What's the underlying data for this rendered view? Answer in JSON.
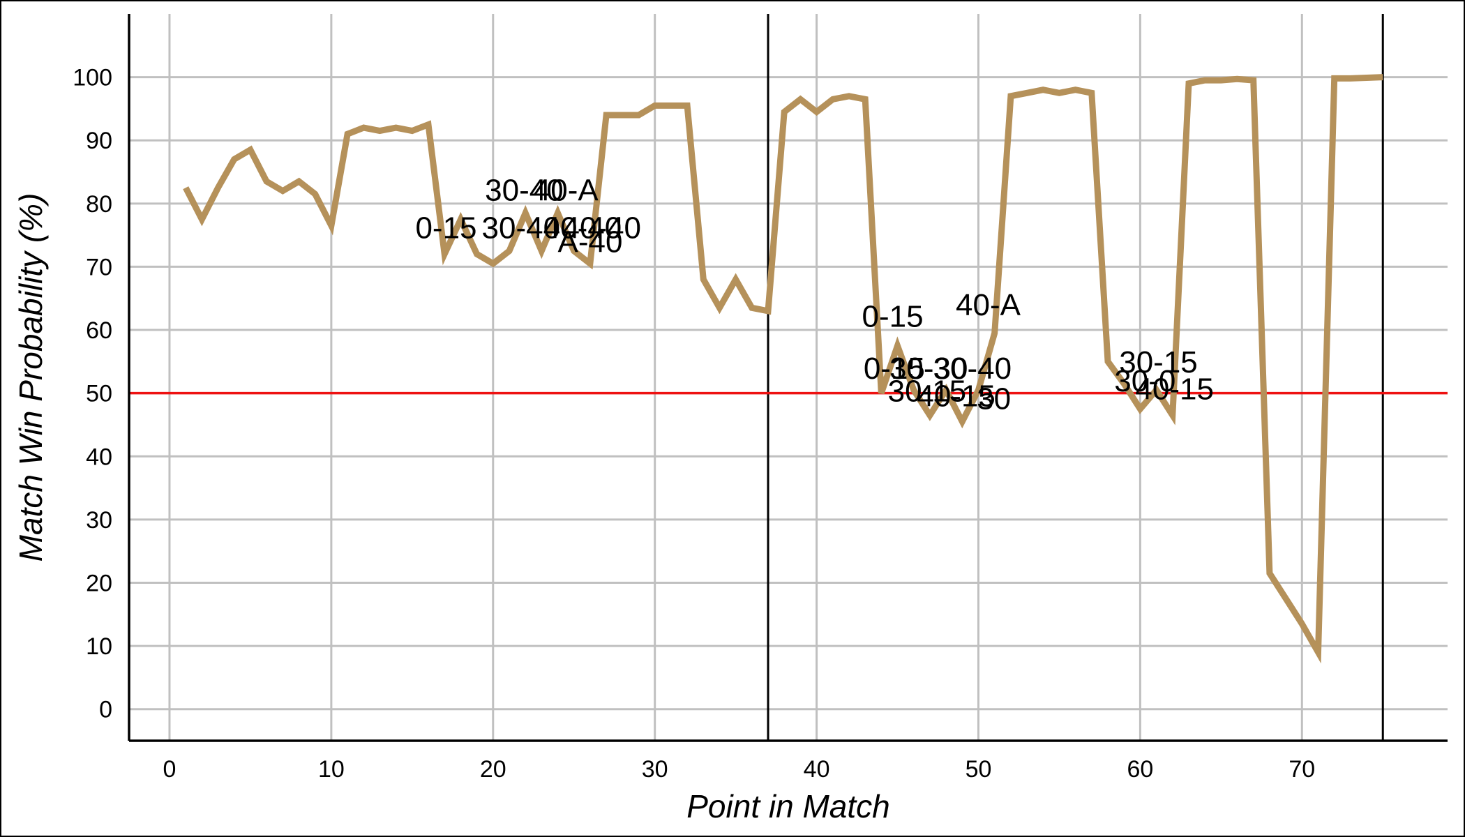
{
  "chart_data": {
    "type": "line",
    "title": "",
    "xlabel": "Point in Match",
    "ylabel": "Match Win Probability (%)",
    "xlim": [
      -2.5,
      79
    ],
    "ylim": [
      -5,
      110
    ],
    "x_ticks": [
      0,
      10,
      20,
      30,
      40,
      50,
      60,
      70
    ],
    "y_ticks": [
      0,
      10,
      20,
      30,
      40,
      50,
      60,
      70,
      80,
      90,
      100
    ],
    "grid": true,
    "line_color": "#b5915a",
    "reference_line": {
      "y": 50,
      "color": "#ee1111"
    },
    "set_boundaries": [
      37,
      75
    ],
    "series": [
      {
        "points": [
          [
            1,
            82.5
          ],
          [
            2,
            77.5
          ],
          [
            3,
            82.5
          ],
          [
            4,
            87
          ],
          [
            5,
            88.5
          ],
          [
            6,
            83.5
          ],
          [
            7,
            82
          ],
          [
            8,
            83.5
          ],
          [
            9,
            81.5
          ],
          [
            10,
            76.5
          ],
          [
            11,
            91
          ],
          [
            12,
            92
          ],
          [
            13,
            91.5
          ],
          [
            14,
            92
          ],
          [
            15,
            91.5
          ],
          [
            16,
            92.5
          ],
          [
            17,
            72
          ],
          [
            18,
            77.5
          ],
          [
            19,
            72
          ],
          [
            20,
            70.5
          ],
          [
            21,
            72.5
          ],
          [
            22,
            78.5
          ],
          [
            23,
            72.5
          ],
          [
            24,
            78.5
          ],
          [
            25,
            72.5
          ],
          [
            26,
            70.5
          ],
          [
            27,
            94
          ],
          [
            28,
            94
          ],
          [
            29,
            94
          ],
          [
            30,
            95.5
          ],
          [
            31,
            95.5
          ],
          [
            32,
            95.5
          ],
          [
            33,
            68
          ],
          [
            34,
            63.5
          ],
          [
            35,
            68
          ],
          [
            36,
            63.5
          ],
          [
            37,
            63
          ],
          [
            38,
            94.5
          ],
          [
            39,
            96.5
          ],
          [
            40,
            94.5
          ],
          [
            41,
            96.5
          ],
          [
            42,
            97
          ],
          [
            43,
            96.5
          ],
          [
            44,
            50
          ],
          [
            45,
            57.5
          ],
          [
            46,
            50.5
          ],
          [
            47,
            46.5
          ],
          [
            48,
            50.5
          ],
          [
            49,
            45.5
          ],
          [
            50,
            50.5
          ],
          [
            51,
            59.5
          ],
          [
            52,
            97
          ],
          [
            53,
            97.5
          ],
          [
            54,
            98
          ],
          [
            55,
            97.5
          ],
          [
            56,
            98
          ],
          [
            57,
            97.5
          ],
          [
            58,
            55
          ],
          [
            59,
            51.5
          ],
          [
            60,
            47.5
          ],
          [
            61,
            50.5
          ],
          [
            62,
            46.5
          ],
          [
            63,
            99
          ],
          [
            64,
            99.5
          ],
          [
            65,
            99.5
          ],
          [
            66,
            99.7
          ],
          [
            67,
            99.5
          ],
          [
            68,
            21.5
          ],
          [
            69,
            17.5
          ],
          [
            70,
            13.5
          ],
          [
            71,
            9
          ],
          [
            72,
            99.8
          ],
          [
            73,
            99.8
          ],
          [
            74,
            99.9
          ],
          [
            75,
            100
          ]
        ]
      }
    ],
    "annotations": [
      {
        "text": "0-15",
        "x": 15.2,
        "y": 74.5
      },
      {
        "text": "30-40",
        "x": 19.5,
        "y": 80.5
      },
      {
        "text": "40-A",
        "x": 22.5,
        "y": 80.5
      },
      {
        "text": "30-40",
        "x": 19.3,
        "y": 74.5
      },
      {
        "text": "40-40",
        "x": 23.1,
        "y": 74.5
      },
      {
        "text": "40-40",
        "x": 24.3,
        "y": 74.5
      },
      {
        "text": "A-40",
        "x": 24.0,
        "y": 72.3
      },
      {
        "text": "0-15",
        "x": 42.8,
        "y": 60.5
      },
      {
        "text": "40-A",
        "x": 48.6,
        "y": 62.3
      },
      {
        "text": "0-15",
        "x": 42.9,
        "y": 52.3
      },
      {
        "text": "30-30",
        "x": 44.5,
        "y": 52.3
      },
      {
        "text": "30-40",
        "x": 47.2,
        "y": 52.3
      },
      {
        "text": "30-15",
        "x": 44.4,
        "y": 48.7
      },
      {
        "text": "40-15",
        "x": 46.2,
        "y": 47.9
      },
      {
        "text": "30",
        "x": 49.9,
        "y": 47.5
      },
      {
        "text": "30-15",
        "x": 58.7,
        "y": 53.3
      },
      {
        "text": "30-0",
        "x": 58.4,
        "y": 50.3
      },
      {
        "text": "40-15",
        "x": 59.7,
        "y": 49.0
      }
    ]
  }
}
